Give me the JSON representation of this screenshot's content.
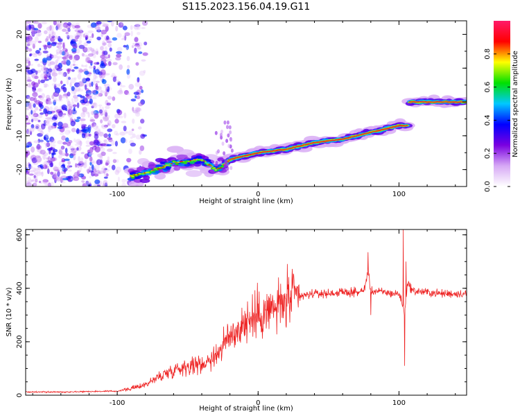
{
  "title": "S115.2023.156.04.19.G11",
  "spectrogram": {
    "xlabel": "Height of straight line (km)",
    "ylabel": "Frequency (Hz)",
    "xlim": [
      -165,
      148
    ],
    "ylim": [
      -25,
      24
    ],
    "xticks": [
      -100,
      0,
      100
    ],
    "yticks": [
      20,
      10,
      0,
      -10,
      -20
    ],
    "colorbar": {
      "label": "Normalized spectral amplitude",
      "range": [
        0,
        1
      ],
      "ticks": [
        0.0,
        0.2,
        0.4,
        0.6,
        0.8
      ],
      "colormap": [
        "#ffffff",
        "#d6a8f5",
        "#7a00e0",
        "#0000ff",
        "#00c8ff",
        "#00e000",
        "#ffff00",
        "#ff0000",
        "#ff1a6a"
      ]
    }
  },
  "chart_data": [
    {
      "type": "heatmap",
      "xlabel": "Height of straight line (km)",
      "ylabel": "Frequency (Hz)",
      "xlim": [
        -165,
        148
      ],
      "ylim": [
        -25,
        24
      ],
      "signal_ridge": {
        "x": [
          -90,
          -80,
          -60,
          -40,
          -30,
          -25,
          -20,
          0,
          20,
          40,
          60,
          80,
          100,
          106,
          107,
          110,
          120,
          140,
          148
        ],
        "y": [
          -22,
          -21,
          -18,
          -17,
          -20,
          -19,
          -17,
          -15,
          -14,
          -12,
          -11,
          -9,
          -7,
          -7,
          0,
          0,
          0,
          0,
          0
        ],
        "peak_amplitude": 1.0
      },
      "noise_region": {
        "x": [
          -165,
          -90
        ],
        "amplitude": 0.35
      }
    },
    {
      "type": "line",
      "xlabel": "Height of straight line (km)",
      "ylabel": "SNR (10 * v/v)",
      "xlim": [
        -165,
        148
      ],
      "ylim": [
        0,
        620
      ],
      "xticks": [
        -100,
        0,
        100
      ],
      "yticks": [
        0,
        200,
        400,
        600
      ],
      "color": "#ee2222",
      "series": [
        {
          "x": [
            -165,
            -140,
            -120,
            -100,
            -90,
            -80,
            -70,
            -60,
            -50,
            -40,
            -30,
            -20,
            -10,
            0,
            10,
            20,
            30,
            40,
            50,
            60,
            70,
            75,
            78,
            80,
            90,
            95,
            100,
            102,
            104,
            106,
            110,
            120,
            130,
            140,
            148
          ],
          "y": [
            12,
            12,
            14,
            15,
            25,
            40,
            70,
            95,
            110,
            115,
            150,
            220,
            270,
            300,
            320,
            350,
            370,
            380,
            380,
            385,
            385,
            390,
            460,
            390,
            385,
            380,
            380,
            350,
            300,
            420,
            390,
            385,
            380,
            380,
            380
          ],
          "spikes": [
            {
              "x": 78,
              "y": 535
            },
            {
              "x": 80,
              "y": 300
            },
            {
              "x": 103,
              "y": 620
            },
            {
              "x": 104,
              "y": 110
            },
            {
              "x": 105,
              "y": 500
            }
          ]
        }
      ]
    }
  ],
  "snr": {
    "xlabel": "Height of straight line (km)",
    "ylabel": "SNR (10 * v/v)"
  }
}
